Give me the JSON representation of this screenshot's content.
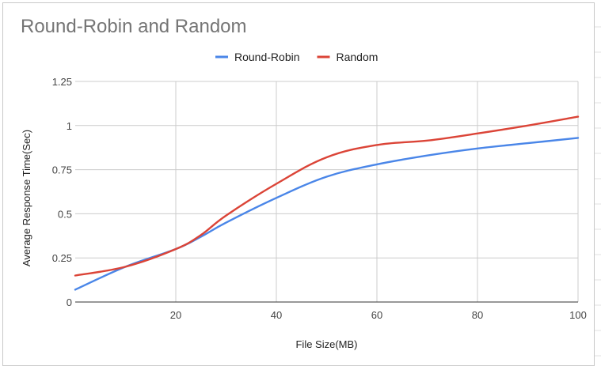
{
  "chart_data": {
    "type": "line",
    "title": "Round-Robin and Random",
    "xlabel": "File Size(MB)",
    "ylabel": "Average Response Time(Sec)",
    "xlim": [
      0,
      100
    ],
    "ylim": [
      0,
      1.25
    ],
    "xticks": [
      "20",
      "40",
      "60",
      "80",
      "100"
    ],
    "yticks": [
      "0",
      "0.25",
      "0.5",
      "0.75",
      "1",
      "1.25"
    ],
    "grid": true,
    "legend_position": "top",
    "x": [
      0,
      10,
      20,
      25,
      30,
      40,
      50,
      60,
      70,
      80,
      90,
      100
    ],
    "series": [
      {
        "name": "Round-Robin",
        "color": "#4a86e8",
        "values": [
          0.07,
          0.2,
          0.3,
          0.37,
          0.45,
          0.59,
          0.71,
          0.78,
          0.83,
          0.87,
          0.9,
          0.93
        ]
      },
      {
        "name": "Random",
        "color": "#db4437",
        "values": [
          0.15,
          0.2,
          0.3,
          0.38,
          0.49,
          0.67,
          0.82,
          0.89,
          0.915,
          0.955,
          1.0,
          1.05
        ]
      }
    ]
  }
}
